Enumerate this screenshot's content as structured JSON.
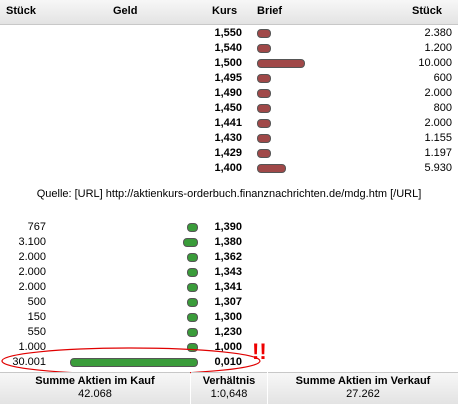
{
  "header": {
    "col_stueck_left": "Stück",
    "col_geld": "Geld",
    "col_kurs": "Kurs",
    "col_brief": "Brief",
    "col_stueck_right": "Stück"
  },
  "brief": {
    "color": "#a04848",
    "rows": [
      {
        "kurs": "1,550",
        "stueck": "2.380",
        "amount": 2380
      },
      {
        "kurs": "1,540",
        "stueck": "1.200",
        "amount": 1200
      },
      {
        "kurs": "1,500",
        "stueck": "10.000",
        "amount": 10000
      },
      {
        "kurs": "1,495",
        "stueck": "600",
        "amount": 600
      },
      {
        "kurs": "1,490",
        "stueck": "2.000",
        "amount": 2000
      },
      {
        "kurs": "1,450",
        "stueck": "800",
        "amount": 800
      },
      {
        "kurs": "1,441",
        "stueck": "2.000",
        "amount": 2000
      },
      {
        "kurs": "1,430",
        "stueck": "1.155",
        "amount": 1155
      },
      {
        "kurs": "1,429",
        "stueck": "1.197",
        "amount": 1197
      },
      {
        "kurs": "1,400",
        "stueck": "5.930",
        "amount": 5930
      }
    ]
  },
  "quelle": "Quelle: [URL] http://aktienkurs-orderbuch.finanznachrichten.de/mdg.htm [/URL]",
  "geld": {
    "color": "#3a9c3a",
    "rows": [
      {
        "stueck": "767",
        "kurs": "1,390",
        "amount": 767
      },
      {
        "stueck": "3.100",
        "kurs": "1,380",
        "amount": 3100
      },
      {
        "stueck": "2.000",
        "kurs": "1,362",
        "amount": 2000
      },
      {
        "stueck": "2.000",
        "kurs": "1,343",
        "amount": 2000
      },
      {
        "stueck": "2.000",
        "kurs": "1,341",
        "amount": 2000
      },
      {
        "stueck": "500",
        "kurs": "1,307",
        "amount": 500
      },
      {
        "stueck": "150",
        "kurs": "1,300",
        "amount": 150
      },
      {
        "stueck": "550",
        "kurs": "1,230",
        "amount": 550
      },
      {
        "stueck": "1.000",
        "kurs": "1,000",
        "amount": 1000
      },
      {
        "stueck": "30.001",
        "kurs": "0,010",
        "amount": 30001
      }
    ]
  },
  "annotation": {
    "exclaim": "!!",
    "color": "#e00000"
  },
  "footer": {
    "kauf_label": "Summe Aktien im Kauf",
    "kauf_value": "42.068",
    "ratio_label": "Verhältnis",
    "ratio_value": "1:0,648",
    "verkauf_label": "Summe Aktien im Verkauf",
    "verkauf_value": "27.262"
  }
}
